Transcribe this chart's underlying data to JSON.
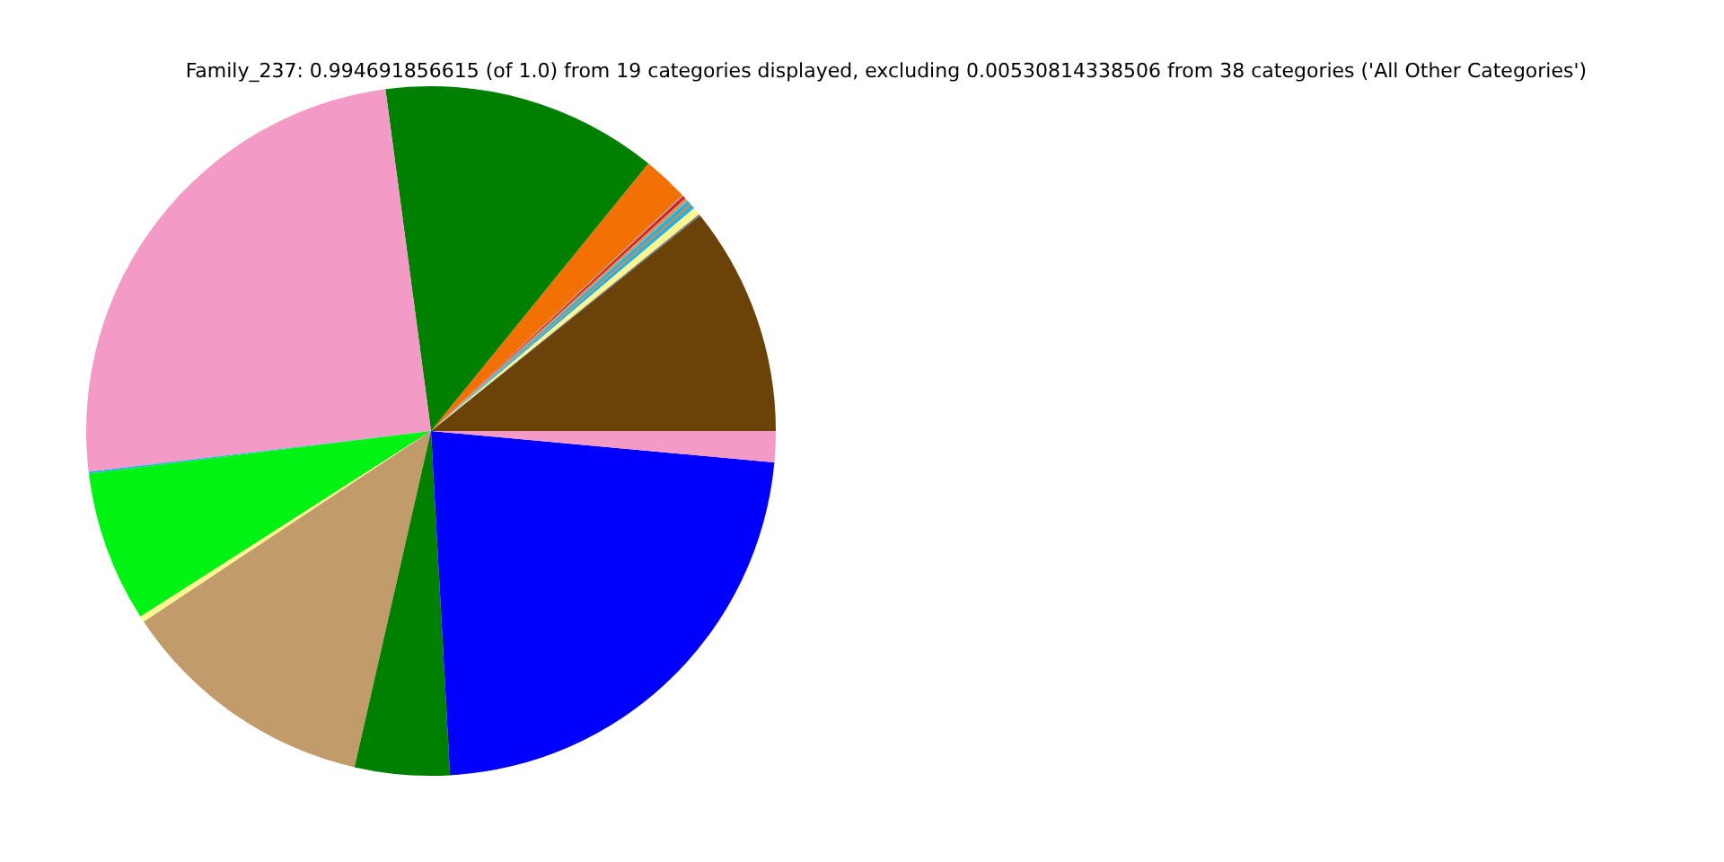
{
  "chart_data": {
    "type": "pie",
    "title": "Family_237: 0.994691856615 (of 1.0) from 19 categories displayed, excluding 0.00530814338506 from 38 categories ('All Other Categories')",
    "categories": [
      null,
      null,
      null,
      null,
      null,
      null,
      null,
      null,
      null,
      null,
      null,
      null,
      null,
      null,
      null,
      null,
      null,
      null,
      null
    ],
    "values": [
      10.75,
      0.08,
      0.36,
      0.19,
      0.08,
      0.17,
      0.17,
      0.14,
      0.06,
      2.14,
      12.97,
      24.78,
      0.08,
      7.08,
      0.28,
      12.11,
      4.44,
      22.67,
      1.45
    ],
    "colors": [
      "#6b4308",
      "#708090",
      "#fff68f",
      "#1fb0e8",
      "#f37004",
      "#1fb0e8",
      "#c29b6b",
      "#e01818",
      "#999999",
      "#f37004",
      "#008000",
      "#f49ac6",
      "#1fb0e8",
      "#00f312",
      "#fff68f",
      "#c29b6b",
      "#008000",
      "#0000ff",
      "#f49ac6"
    ],
    "legend": false
  }
}
